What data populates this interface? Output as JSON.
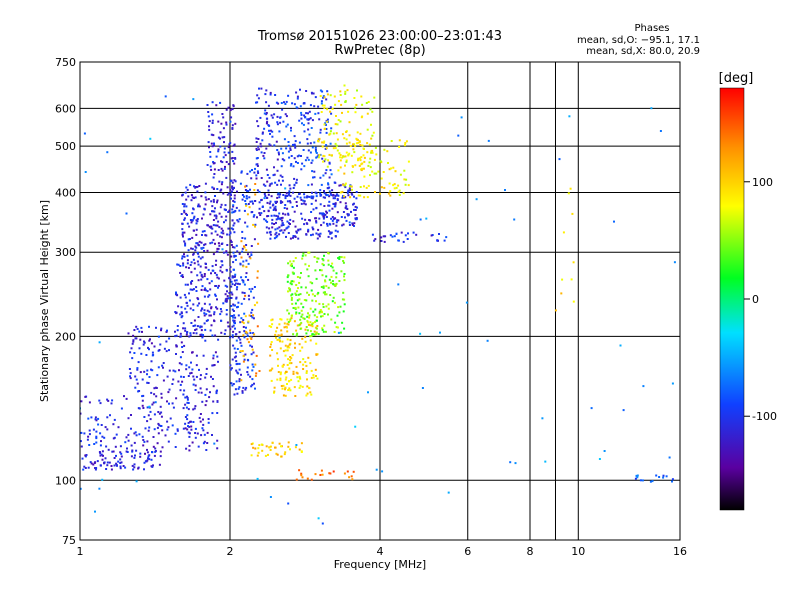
{
  "chart_data": {
    "type": "scatter",
    "title": "Tromsø 20151026 23:00:00–23:01:43",
    "subtitle": "RwPretec (8p)",
    "xlabel": "Frequency [MHz]",
    "ylabel": "Stationary phase Virtual Height [km]",
    "x_scale": "log",
    "y_scale": "log",
    "xlim": [
      1,
      16
    ],
    "ylim": [
      75,
      750
    ],
    "x_ticks": [
      1,
      2,
      4,
      6,
      8,
      10,
      16
    ],
    "x_tick_labels": [
      "1",
      "2",
      "4",
      "6",
      "8",
      "10",
      "16"
    ],
    "x_extra_gridlines": [
      9
    ],
    "y_ticks": [
      75,
      100,
      200,
      300,
      400,
      500,
      600,
      750
    ],
    "y_tick_labels": [
      "75",
      "100",
      "200",
      "300",
      "400",
      "500",
      "600",
      "750"
    ],
    "grid": true,
    "stats": {
      "heading": "Phases",
      "line_o": "mean, sd,O: −95.1, 17.1",
      "line_x": "mean, sd,X:  80.0, 20.9"
    },
    "colorbar": {
      "unit_label": "[deg]",
      "range": [
        -180,
        180
      ],
      "ticks": [
        100,
        0,
        -100
      ],
      "tick_labels": [
        "100",
        "0",
        "-100"
      ]
    },
    "clusters": [
      {
        "x": [
          1.0,
          1.5
        ],
        "y": [
          105,
          115
        ],
        "phase": -110,
        "count": 90
      },
      {
        "x": [
          1.0,
          1.25
        ],
        "y": [
          115,
          150
        ],
        "phase": -105,
        "count": 60
      },
      {
        "x": [
          1.25,
          1.9
        ],
        "y": [
          115,
          210
        ],
        "phase": -110,
        "count": 320
      },
      {
        "x": [
          1.55,
          2.05
        ],
        "y": [
          200,
          300
        ],
        "phase": -110,
        "count": 240
      },
      {
        "x": [
          1.6,
          2.05
        ],
        "y": [
          300,
          420
        ],
        "phase": -115,
        "count": 200
      },
      {
        "x": [
          1.8,
          2.05
        ],
        "y": [
          420,
          620
        ],
        "phase": -112,
        "count": 90
      },
      {
        "x": [
          2.0,
          2.25
        ],
        "y": [
          150,
          450
        ],
        "phase": -100,
        "count": 220
      },
      {
        "x": [
          2.1,
          2.3
        ],
        "y": [
          160,
          430
        ],
        "phase": 120,
        "count": 50
      },
      {
        "x": [
          2.25,
          2.5
        ],
        "y": [
          340,
          660
        ],
        "phase": -110,
        "count": 120
      },
      {
        "x": [
          2.35,
          3.3
        ],
        "y": [
          320,
          400
        ],
        "phase": -110,
        "count": 220
      },
      {
        "x": [
          2.5,
          3.2
        ],
        "y": [
          380,
          660
        ],
        "phase": -95,
        "count": 200
      },
      {
        "x": [
          3.2,
          3.6
        ],
        "y": [
          340,
          420
        ],
        "phase": -110,
        "count": 70
      },
      {
        "x": [
          3.0,
          3.9
        ],
        "y": [
          450,
          670
        ],
        "phase": 80,
        "count": 130
      },
      {
        "x": [
          3.3,
          4.6
        ],
        "y": [
          390,
          520
        ],
        "phase": 85,
        "count": 100
      },
      {
        "x": [
          2.4,
          3.0
        ],
        "y": [
          150,
          220
        ],
        "phase": 95,
        "count": 170
      },
      {
        "x": [
          2.6,
          3.4
        ],
        "y": [
          200,
          300
        ],
        "phase": 45,
        "count": 220
      },
      {
        "x": [
          2.2,
          2.8
        ],
        "y": [
          112,
          120
        ],
        "phase": 100,
        "count": 40
      },
      {
        "x": [
          2.7,
          3.6
        ],
        "y": [
          100,
          105
        ],
        "phase": 140,
        "count": 20
      },
      {
        "x": [
          3.8,
          5.6
        ],
        "y": [
          315,
          330
        ],
        "phase": -105,
        "count": 30
      },
      {
        "x": [
          9.0,
          9.8
        ],
        "y": [
          180,
          420
        ],
        "phase": 90,
        "count": 10
      },
      {
        "x": [
          13.0,
          15.5
        ],
        "y": [
          99,
          103
        ],
        "phase": -80,
        "count": 15
      },
      {
        "x": [
          1.0,
          16.0
        ],
        "y": [
          78,
          650
        ],
        "phase": -60,
        "count": 70
      }
    ]
  }
}
